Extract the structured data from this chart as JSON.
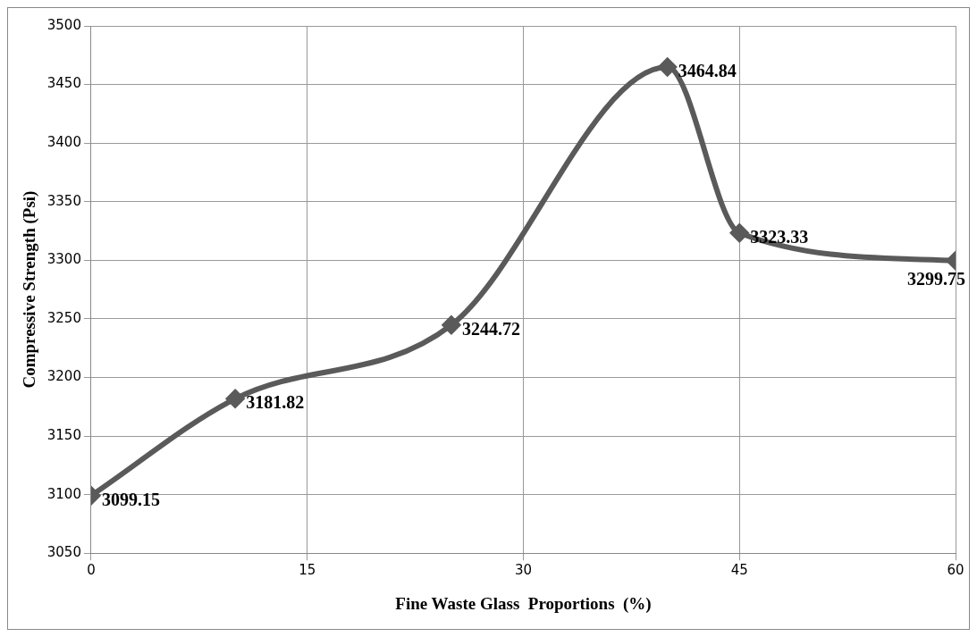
{
  "chart_data": {
    "type": "line",
    "xlabel": "Fine Waste Glass  Proportions  (%)",
    "ylabel": "Compressive Strength (Psi)",
    "x": [
      0,
      10,
      25,
      40,
      45,
      60
    ],
    "series": [
      {
        "color": "#5a5a5a",
        "values": [
          3099.15,
          3181.82,
          3244.72,
          3464.84,
          3323.33,
          3299.75
        ]
      }
    ],
    "xlim": [
      0,
      60
    ],
    "xticks": [
      0,
      15,
      30,
      45,
      60
    ],
    "ylim": [
      3050,
      3500
    ],
    "yticks": [
      3050,
      3100,
      3150,
      3200,
      3250,
      3300,
      3350,
      3400,
      3450,
      3500
    ],
    "grid": true,
    "marker": "diamond",
    "line_style": "solid",
    "data_labels": true,
    "legend": false
  }
}
